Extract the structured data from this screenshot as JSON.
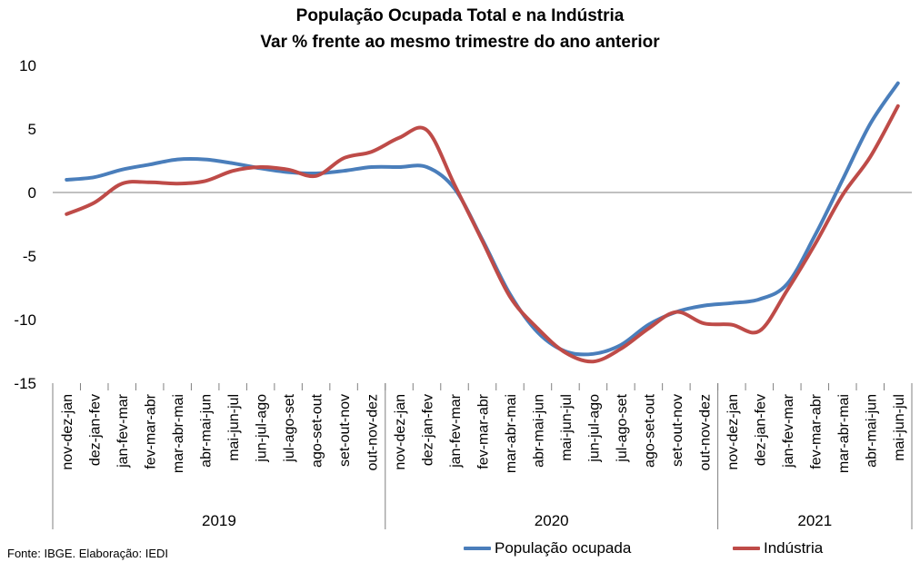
{
  "chart_data": {
    "type": "line",
    "title": "População Ocupada Total e na Indústria",
    "subtitle": "Var % frente ao mesmo trimestre do ano anterior",
    "ylim": [
      -15,
      10
    ],
    "yticks": [
      10,
      5,
      0,
      -5,
      -10,
      -15
    ],
    "categories": [
      "nov-dez-jan",
      "dez-jan-fev",
      "jan-fev-mar",
      "fev-mar-abr",
      "mar-abr-mai",
      "abr-mai-jun",
      "mai-jun-jul",
      "jun-jul-ago",
      "jul-ago-set",
      "ago-set-out",
      "set-out-nov",
      "out-nov-dez",
      "nov-dez-jan",
      "dez-jan-fev",
      "jan-fev-mar",
      "fev-mar-abr",
      "mar-abr-mai",
      "abr-mai-jun",
      "mai-jun-jul",
      "jun-jul-ago",
      "jul-ago-set",
      "ago-set-out",
      "set-out-nov",
      "out-nov-dez",
      "nov-dez-jan",
      "dez-jan-fev",
      "jan-fev-mar",
      "fev-mar-abr",
      "mar-abr-mai",
      "abr-mai-jun",
      "mai-jun-jul"
    ],
    "groups": [
      {
        "label": "2019",
        "count": 12
      },
      {
        "label": "2020",
        "count": 12
      },
      {
        "label": "2021",
        "count": 7
      }
    ],
    "series": [
      {
        "name": "População ocupada",
        "color": "#4a7ebb",
        "values": [
          1.0,
          1.2,
          1.8,
          2.2,
          2.6,
          2.6,
          2.3,
          1.9,
          1.6,
          1.5,
          1.7,
          2.0,
          2.0,
          2.0,
          0.3,
          -3.7,
          -8.0,
          -11.0,
          -12.5,
          -12.7,
          -12.0,
          -10.4,
          -9.4,
          -8.9,
          -8.7,
          -8.4,
          -7.2,
          -3.4,
          1.0,
          5.4,
          8.6
        ]
      },
      {
        "name": "Indústria",
        "color": "#be4b48",
        "values": [
          -1.7,
          -0.8,
          0.7,
          0.8,
          0.7,
          0.9,
          1.7,
          2.0,
          1.8,
          1.3,
          2.7,
          3.2,
          4.3,
          4.9,
          0.6,
          -3.8,
          -8.2,
          -10.7,
          -12.6,
          -13.3,
          -12.3,
          -10.7,
          -9.4,
          -10.3,
          -10.4,
          -10.9,
          -7.7,
          -4.1,
          -0.2,
          2.8,
          6.8
        ]
      }
    ],
    "legend_position": "bottom",
    "grid": false
  },
  "source": "Fonte: IBGE. Elaboração: IEDI"
}
